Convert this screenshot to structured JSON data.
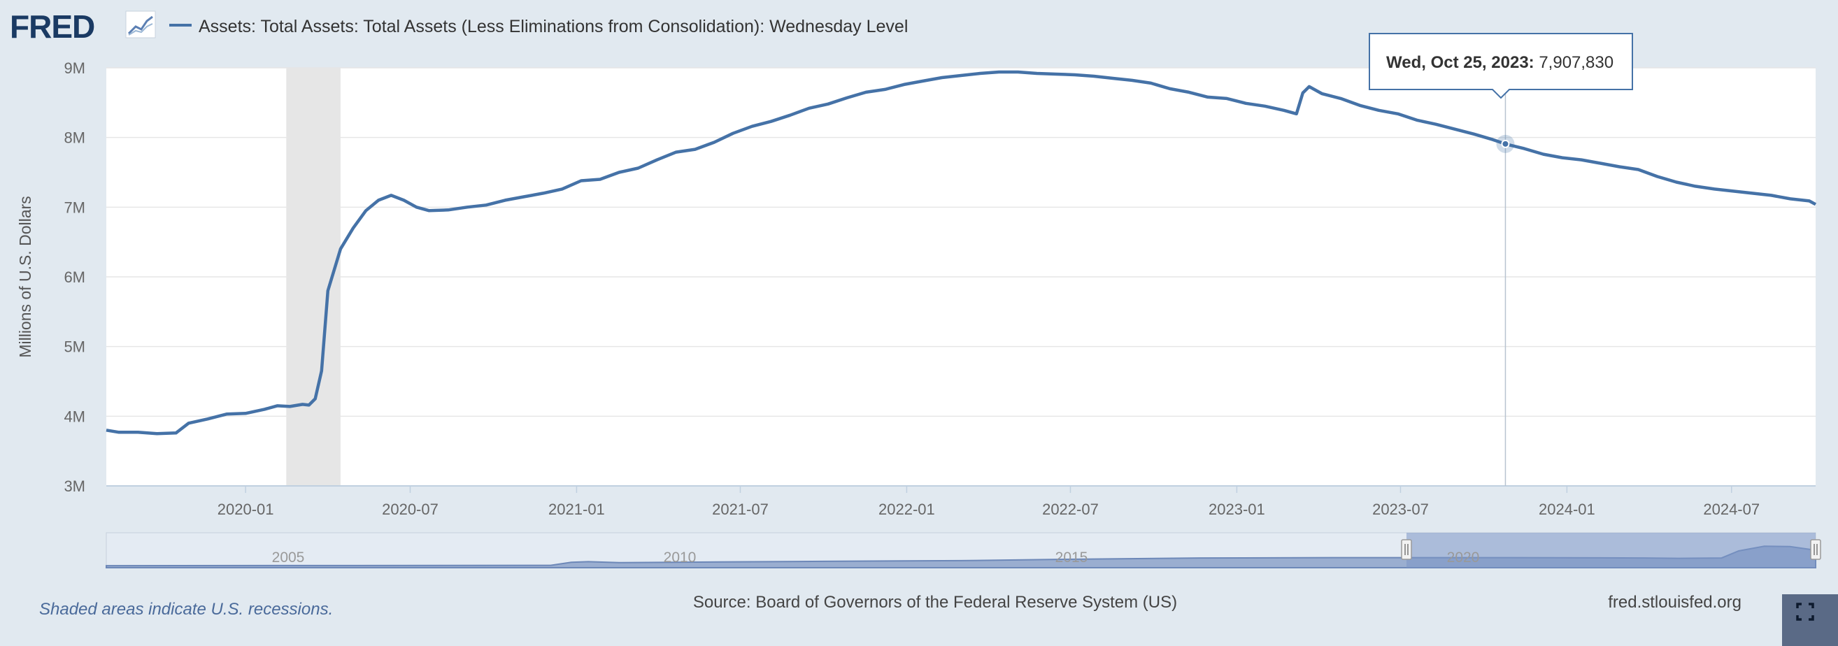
{
  "header": {
    "logo_text": "FRED",
    "series_title": "Assets: Total Assets: Total Assets (Less Eliminations from Consolidation): Wednesday Level"
  },
  "colors": {
    "background": "#e1e9f0",
    "plot_background": "#ffffff",
    "series_line": "#4572a7",
    "recession_shade": "#e6e6e6",
    "navigator_fill": "#9aaed0",
    "navigator_selected": "#7b95c4"
  },
  "footer": {
    "recession_note": "Shaded areas indicate U.S. recessions.",
    "source": "Source: Board of Governors of the Federal Reserve System (US)",
    "site": "fred.stlouisfed.org",
    "fullscreen_icon": "fullscreen-icon"
  },
  "tooltip": {
    "date": "Wed, Oct 25, 2023:",
    "value": "7,907,830",
    "x": "2023-10-25",
    "y": 7907830
  },
  "navigator": {
    "year_labels": [
      "2005",
      "2010",
      "2015",
      "2020"
    ]
  },
  "chart_data": {
    "type": "line",
    "title": "Assets: Total Assets: Total Assets (Less Eliminations from Consolidation): Wednesday Level",
    "ylabel": "Millions of U.S. Dollars",
    "xlabel": "",
    "ylim": [
      3000000,
      9000000
    ],
    "xlim": [
      "2019-07-31",
      "2024-10-02"
    ],
    "y_ticks": [
      3000000,
      4000000,
      5000000,
      6000000,
      7000000,
      8000000,
      9000000
    ],
    "y_tick_labels": [
      "3M",
      "4M",
      "5M",
      "6M",
      "7M",
      "8M",
      "9M"
    ],
    "x_ticks": [
      "2020-01-01",
      "2020-07-01",
      "2021-01-01",
      "2021-07-01",
      "2022-01-01",
      "2022-07-01",
      "2023-01-01",
      "2023-07-01",
      "2024-01-01",
      "2024-07-01"
    ],
    "x_tick_labels": [
      "2020-01",
      "2020-07",
      "2021-01",
      "2021-07",
      "2022-01",
      "2022-07",
      "2023-01",
      "2023-07",
      "2024-01",
      "2024-07"
    ],
    "grid": true,
    "recessions": [
      {
        "start": "2020-02-15",
        "end": "2020-04-15"
      }
    ],
    "series": [
      {
        "name": "Assets: Total Assets: Total Assets (Less Eliminations from Consolidation): Wednesday Level",
        "points": [
          [
            "2019-07-31",
            3800000
          ],
          [
            "2019-08-14",
            3770000
          ],
          [
            "2019-09-04",
            3770000
          ],
          [
            "2019-09-25",
            3750000
          ],
          [
            "2019-10-16",
            3760000
          ],
          [
            "2019-10-30",
            3900000
          ],
          [
            "2019-11-20",
            3960000
          ],
          [
            "2019-12-11",
            4030000
          ],
          [
            "2020-01-01",
            4040000
          ],
          [
            "2020-01-22",
            4100000
          ],
          [
            "2020-02-05",
            4150000
          ],
          [
            "2020-02-19",
            4140000
          ],
          [
            "2020-03-04",
            4170000
          ],
          [
            "2020-03-11",
            4160000
          ],
          [
            "2020-03-18",
            4250000
          ],
          [
            "2020-03-25",
            4650000
          ],
          [
            "2020-04-01",
            5800000
          ],
          [
            "2020-04-15",
            6400000
          ],
          [
            "2020-04-29",
            6700000
          ],
          [
            "2020-05-13",
            6950000
          ],
          [
            "2020-05-27",
            7100000
          ],
          [
            "2020-06-10",
            7170000
          ],
          [
            "2020-06-24",
            7100000
          ],
          [
            "2020-07-08",
            7000000
          ],
          [
            "2020-07-22",
            6950000
          ],
          [
            "2020-08-12",
            6960000
          ],
          [
            "2020-09-02",
            7000000
          ],
          [
            "2020-09-23",
            7030000
          ],
          [
            "2020-10-14",
            7100000
          ],
          [
            "2020-11-04",
            7150000
          ],
          [
            "2020-11-25",
            7200000
          ],
          [
            "2020-12-16",
            7260000
          ],
          [
            "2021-01-06",
            7380000
          ],
          [
            "2021-01-27",
            7400000
          ],
          [
            "2021-02-17",
            7500000
          ],
          [
            "2021-03-10",
            7560000
          ],
          [
            "2021-03-31",
            7680000
          ],
          [
            "2021-04-21",
            7790000
          ],
          [
            "2021-05-12",
            7830000
          ],
          [
            "2021-06-02",
            7930000
          ],
          [
            "2021-06-23",
            8060000
          ],
          [
            "2021-07-14",
            8160000
          ],
          [
            "2021-08-04",
            8230000
          ],
          [
            "2021-08-25",
            8320000
          ],
          [
            "2021-09-15",
            8420000
          ],
          [
            "2021-10-06",
            8480000
          ],
          [
            "2021-10-27",
            8570000
          ],
          [
            "2021-11-17",
            8650000
          ],
          [
            "2021-12-08",
            8690000
          ],
          [
            "2021-12-29",
            8760000
          ],
          [
            "2022-01-19",
            8810000
          ],
          [
            "2022-02-09",
            8860000
          ],
          [
            "2022-03-02",
            8890000
          ],
          [
            "2022-03-23",
            8920000
          ],
          [
            "2022-04-13",
            8940000
          ],
          [
            "2022-05-04",
            8940000
          ],
          [
            "2022-05-25",
            8920000
          ],
          [
            "2022-06-15",
            8910000
          ],
          [
            "2022-07-06",
            8900000
          ],
          [
            "2022-07-27",
            8880000
          ],
          [
            "2022-08-17",
            8850000
          ],
          [
            "2022-09-07",
            8820000
          ],
          [
            "2022-09-28",
            8780000
          ],
          [
            "2022-10-19",
            8700000
          ],
          [
            "2022-11-09",
            8650000
          ],
          [
            "2022-11-30",
            8580000
          ],
          [
            "2022-12-21",
            8560000
          ],
          [
            "2023-01-11",
            8490000
          ],
          [
            "2023-02-01",
            8450000
          ],
          [
            "2023-02-22",
            8390000
          ],
          [
            "2023-03-08",
            8340000
          ],
          [
            "2023-03-15",
            8640000
          ],
          [
            "2023-03-22",
            8730000
          ],
          [
            "2023-04-05",
            8630000
          ],
          [
            "2023-04-26",
            8560000
          ],
          [
            "2023-05-17",
            8460000
          ],
          [
            "2023-06-07",
            8390000
          ],
          [
            "2023-06-28",
            8340000
          ],
          [
            "2023-07-19",
            8250000
          ],
          [
            "2023-08-09",
            8190000
          ],
          [
            "2023-08-30",
            8120000
          ],
          [
            "2023-09-20",
            8050000
          ],
          [
            "2023-10-11",
            7970000
          ],
          [
            "2023-10-25",
            7907830
          ],
          [
            "2023-11-15",
            7840000
          ],
          [
            "2023-12-06",
            7760000
          ],
          [
            "2023-12-27",
            7710000
          ],
          [
            "2024-01-17",
            7680000
          ],
          [
            "2024-02-07",
            7630000
          ],
          [
            "2024-02-28",
            7580000
          ],
          [
            "2024-03-20",
            7540000
          ],
          [
            "2024-04-10",
            7440000
          ],
          [
            "2024-05-01",
            7360000
          ],
          [
            "2024-05-22",
            7300000
          ],
          [
            "2024-06-12",
            7260000
          ],
          [
            "2024-07-03",
            7230000
          ],
          [
            "2024-07-24",
            7200000
          ],
          [
            "2024-08-14",
            7170000
          ],
          [
            "2024-09-04",
            7120000
          ],
          [
            "2024-09-25",
            7090000
          ],
          [
            "2024-10-02",
            7040000
          ]
        ]
      }
    ]
  }
}
